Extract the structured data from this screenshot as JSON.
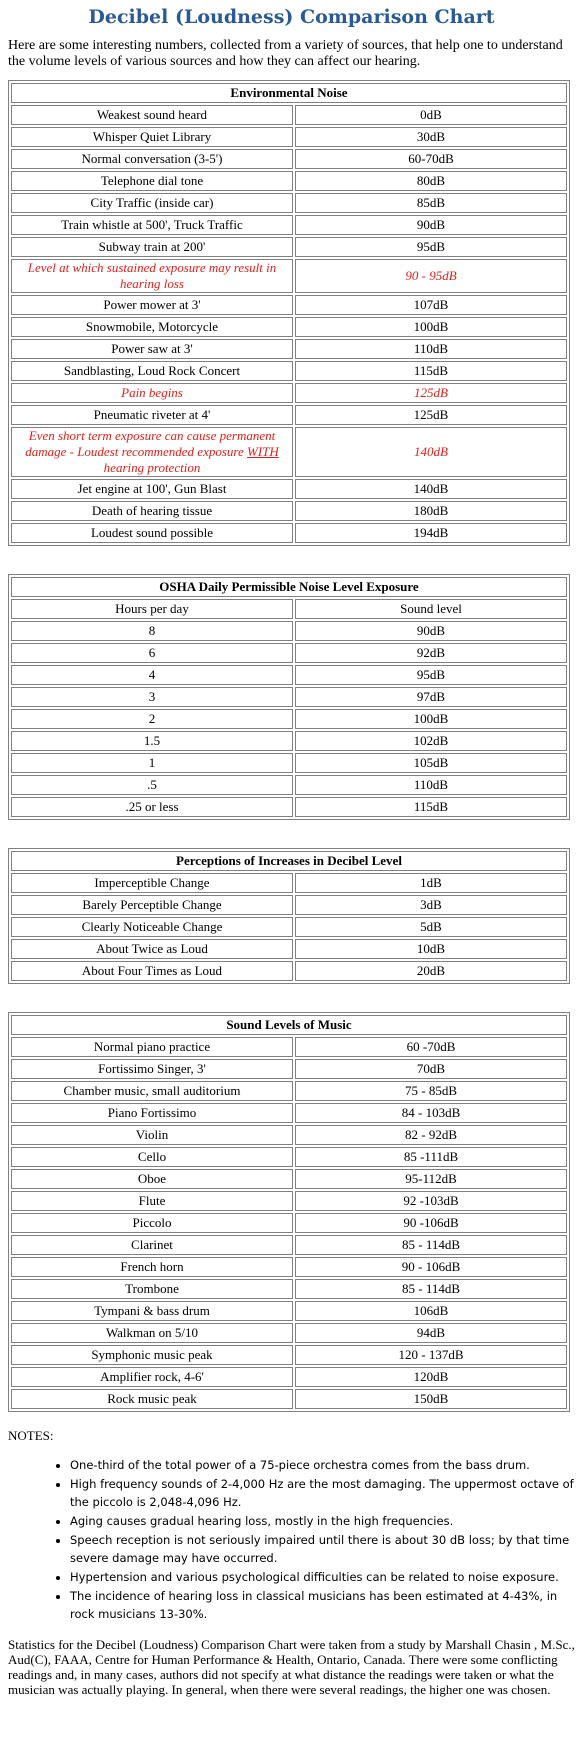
{
  "title": "Decibel (Loudness) Comparison Chart",
  "intro": "Here are some interesting numbers, collected from a variety of sources, that help one to understand the volume levels of various sources and how they can affect our hearing.",
  "environmental": {
    "caption": "Environmental Noise",
    "rows": [
      {
        "source": "Weakest sound heard",
        "level": "0dB"
      },
      {
        "source": "Whisper Quiet Library",
        "level": "30dB"
      },
      {
        "source": "Normal conversation (3-5')",
        "level": "60-70dB"
      },
      {
        "source": "Telephone dial tone",
        "level": "80dB"
      },
      {
        "source": "City Traffic (inside car)",
        "level": "85dB"
      },
      {
        "source": "Train whistle at 500', Truck Traffic",
        "level": "90dB"
      },
      {
        "source": "Subway train at 200'",
        "level": "95dB"
      },
      {
        "source": "Level at which sustained exposure may result in hearing loss",
        "level": "90 - 95dB"
      },
      {
        "source": "Power mower at 3'",
        "level": "107dB"
      },
      {
        "source": "Snowmobile, Motorcycle",
        "level": "100dB"
      },
      {
        "source": "Power saw at 3'",
        "level": "110dB"
      },
      {
        "source": "Sandblasting, Loud Rock Concert",
        "level": "115dB"
      },
      {
        "source": "Pain begins",
        "level": "125dB"
      },
      {
        "source": "Pneumatic riveter at 4'",
        "level": "125dB"
      },
      {
        "source_a": "Even short term exposure can cause permanent damage - Loudest recommended exposure ",
        "source_b": "WITH",
        "source_c": " hearing protection",
        "level": "140dB"
      },
      {
        "source": "Jet engine at 100', Gun Blast",
        "level": "140dB"
      },
      {
        "source": "Death of hearing tissue",
        "level": "180dB"
      },
      {
        "source": "Loudest sound possible",
        "level": "194dB"
      }
    ]
  },
  "osha": {
    "caption": "OSHA Daily Permissible Noise Level Exposure",
    "col1": "Hours per day",
    "col2": "Sound level",
    "rows": [
      {
        "hours": "8",
        "level": "90dB"
      },
      {
        "hours": "6",
        "level": "92dB"
      },
      {
        "hours": "4",
        "level": "95dB"
      },
      {
        "hours": "3",
        "level": "97dB"
      },
      {
        "hours": "2",
        "level": "100dB"
      },
      {
        "hours": "1.5",
        "level": "102dB"
      },
      {
        "hours": "1",
        "level": "105dB"
      },
      {
        "hours": ".5",
        "level": "110dB"
      },
      {
        "hours": ".25 or less",
        "level": "115dB"
      }
    ]
  },
  "perceptions": {
    "caption": "Perceptions of Increases in Decibel Level",
    "rows": [
      {
        "change": "Imperceptible Change",
        "level": "1dB"
      },
      {
        "change": "Barely Perceptible Change",
        "level": "3dB"
      },
      {
        "change": "Clearly Noticeable Change",
        "level": "5dB"
      },
      {
        "change": "About Twice as Loud",
        "level": "10dB"
      },
      {
        "change": "About Four Times as Loud",
        "level": "20dB"
      }
    ]
  },
  "music": {
    "caption": "Sound Levels of Music",
    "rows": [
      {
        "source": "Normal piano practice",
        "level": "60 -70dB"
      },
      {
        "source": "Fortissimo Singer, 3'",
        "level": "70dB"
      },
      {
        "source": "Chamber music, small auditorium",
        "level": "75 - 85dB"
      },
      {
        "source": "Piano Fortissimo",
        "level": "84 - 103dB"
      },
      {
        "source": "Violin",
        "level": "82 - 92dB"
      },
      {
        "source": "Cello",
        "level": "85 -111dB"
      },
      {
        "source": "Oboe",
        "level": "95-112dB"
      },
      {
        "source": "Flute",
        "level": "92 -103dB"
      },
      {
        "source": "Piccolo",
        "level": "90 -106dB"
      },
      {
        "source": "Clarinet",
        "level": "85 - 114dB"
      },
      {
        "source": "French horn",
        "level": "90 - 106dB"
      },
      {
        "source": "Trombone",
        "level": "85 - 114dB"
      },
      {
        "source": "Tympani & bass drum",
        "level": "106dB"
      },
      {
        "source": "Walkman on 5/10",
        "level": "94dB"
      },
      {
        "source": "Symphonic music peak",
        "level": "120 - 137dB"
      },
      {
        "source": "Amplifier rock, 4-6'",
        "level": "120dB"
      },
      {
        "source": "Rock music peak",
        "level": "150dB"
      }
    ]
  },
  "notes": {
    "heading": "NOTES:",
    "items": [
      "One-third of the total power of a 75-piece orchestra comes from the bass drum.",
      "High frequency sounds of 2-4,000 Hz are the most damaging. The uppermost octave of the piccolo is 2,048-4,096 Hz.",
      "Aging causes gradual hearing loss, mostly in the high frequencies.",
      "Speech reception is not seriously impaired until there is about 30 dB loss; by that time severe damage may have occurred.",
      "Hypertension and various psychological difficulties can be related to noise exposure.",
      "The incidence of hearing loss in classical musicians has been estimated at 4-43%, in rock musicians 13-30%."
    ]
  },
  "footer": "Statistics for the Decibel (Loudness) Comparison Chart were taken from a study by Marshall Chasin , M.Sc., Aud(C), FAAA, Centre for Human Performance & Health, Ontario, Canada. There were some conflicting readings and, in many cases, authors did not specify at what distance the readings were taken or what the musician was actually playing. In general, when there were several readings, the higher one was chosen.",
  "colors": {
    "title": "#2a5a94",
    "warning": "#e0201a",
    "border": "#808080"
  }
}
